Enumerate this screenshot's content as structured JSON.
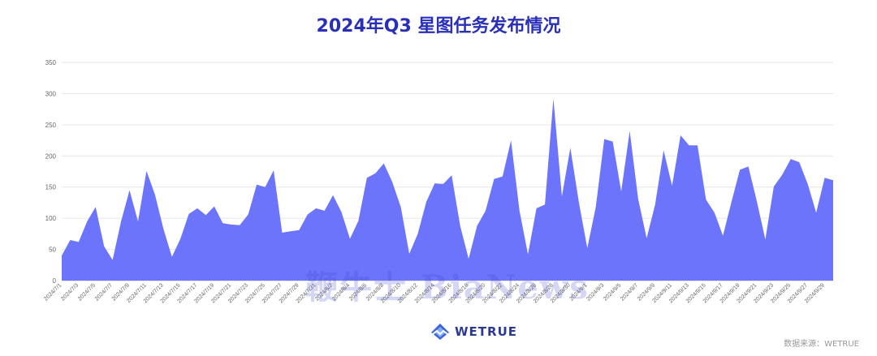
{
  "title": "2024年Q3 星图任务发布情况",
  "watermark": "鞭牛士 BiaNews",
  "brand": "WETRUE",
  "source": "数据来源：WETRUE",
  "colors": {
    "title": "#2a2fb8",
    "area": "#6b74fb",
    "grid": "#e6e6e6"
  },
  "chart_data": {
    "type": "area",
    "title": "2024年Q3 星图任务发布情况",
    "xlabel": "",
    "ylabel": "",
    "ylim": [
      0,
      350
    ],
    "yticks": [
      0,
      50,
      100,
      150,
      200,
      250,
      300,
      350
    ],
    "grid": true,
    "x": [
      "2024/7/1",
      "2024/7/2",
      "2024/7/3",
      "2024/7/4",
      "2024/7/5",
      "2024/7/6",
      "2024/7/7",
      "2024/7/8",
      "2024/7/9",
      "2024/7/10",
      "2024/7/11",
      "2024/7/12",
      "2024/7/13",
      "2024/7/14",
      "2024/7/15",
      "2024/7/16",
      "2024/7/17",
      "2024/7/18",
      "2024/7/19",
      "2024/7/20",
      "2024/7/21",
      "2024/7/22",
      "2024/7/23",
      "2024/7/24",
      "2024/7/25",
      "2024/7/26",
      "2024/7/27",
      "2024/7/28",
      "2024/7/29",
      "2024/7/30",
      "2024/7/31",
      "2024/8/1",
      "2024/8/2",
      "2024/8/3",
      "2024/8/4",
      "2024/8/5",
      "2024/8/6",
      "2024/8/7",
      "2024/8/8",
      "2024/8/9",
      "2024/8/10",
      "2024/8/11",
      "2024/8/12",
      "2024/8/13",
      "2024/8/14",
      "2024/8/15",
      "2024/8/16",
      "2024/8/17",
      "2024/8/18",
      "2024/8/19",
      "2024/8/20",
      "2024/8/21",
      "2024/8/22",
      "2024/8/23",
      "2024/8/24",
      "2024/8/25",
      "2024/8/26",
      "2024/8/27",
      "2024/8/28",
      "2024/8/29",
      "2024/8/30",
      "2024/8/31",
      "2024/9/1",
      "2024/9/2",
      "2024/9/3",
      "2024/9/4",
      "2024/9/5",
      "2024/9/6",
      "2024/9/7",
      "2024/9/8",
      "2024/9/9",
      "2024/9/10",
      "2024/9/11",
      "2024/9/12",
      "2024/9/13",
      "2024/9/14",
      "2024/9/15",
      "2024/9/16",
      "2024/9/17",
      "2024/9/18",
      "2024/9/19",
      "2024/9/20",
      "2024/9/21",
      "2024/9/22",
      "2024/9/23",
      "2024/9/24",
      "2024/9/25",
      "2024/9/26",
      "2024/9/27",
      "2024/9/28",
      "2024/9/29",
      "2024/9/30"
    ],
    "xtick_labels": [
      "2024/7/1",
      "2024/7/3",
      "2024/7/5",
      "2024/7/7",
      "2024/7/9",
      "2024/7/11",
      "2024/7/13",
      "2024/7/15",
      "2024/7/17",
      "2024/7/19",
      "2024/7/21",
      "2024/7/23",
      "2024/7/25",
      "2024/7/27",
      "2024/7/29",
      "2024/7/31",
      "2024/8/2",
      "2024/8/4",
      "2024/8/6",
      "2024/8/8",
      "2024/8/10",
      "2024/8/12",
      "2024/8/14",
      "2024/8/16",
      "2024/8/18",
      "2024/8/20",
      "2024/8/22",
      "2024/8/24",
      "2024/8/26",
      "2024/8/28",
      "2024/8/30",
      "2024/9/1",
      "2024/9/3",
      "2024/9/5",
      "2024/9/7",
      "2024/9/9",
      "2024/9/11",
      "2024/9/13",
      "2024/9/15",
      "2024/9/17",
      "2024/9/19",
      "2024/9/21",
      "2024/9/23",
      "2024/9/25",
      "2024/9/27",
      "2024/9/29"
    ],
    "series": [
      {
        "name": "",
        "values": [
          40,
          65,
          62,
          95,
          118,
          55,
          33,
          95,
          145,
          95,
          176,
          138,
          83,
          38,
          67,
          107,
          116,
          105,
          119,
          92,
          90,
          89,
          106,
          154,
          150,
          177,
          77,
          79,
          81,
          106,
          116,
          112,
          137,
          110,
          67,
          96,
          165,
          172,
          188,
          158,
          118,
          43,
          75,
          126,
          156,
          155,
          169,
          88,
          35,
          88,
          112,
          163,
          167,
          225,
          112,
          42,
          116,
          122,
          292,
          135,
          213,
          126,
          52,
          118,
          227,
          223,
          143,
          240,
          131,
          68,
          122,
          209,
          152,
          233,
          217,
          217,
          130,
          109,
          72,
          126,
          178,
          183,
          127,
          66,
          151,
          170,
          195,
          190,
          155,
          109,
          165,
          161
        ]
      }
    ]
  }
}
